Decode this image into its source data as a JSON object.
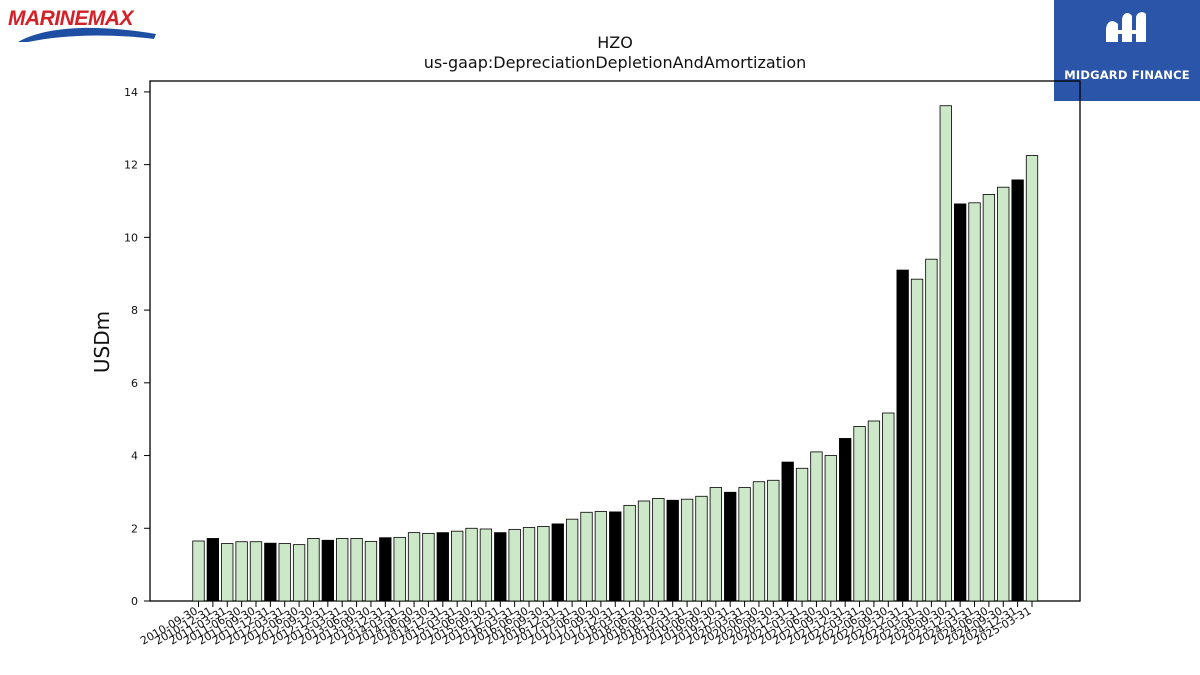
{
  "branding": {
    "left_logo_text": "MARINEMAX",
    "right_logo_text": "MIDGARD FINANCE"
  },
  "colors": {
    "bar_light": "#cde8c8",
    "bar_dark": "#000000",
    "axis": "#000000",
    "logo_blue": "#2b55a8",
    "logo_red": "#d42027"
  },
  "chart_data": {
    "type": "bar",
    "title": "HZO",
    "subtitle": "us-gaap:DepreciationDepletionAndAmortization",
    "xlabel": "",
    "ylabel": "USDm",
    "ylim": [
      0,
      14.3
    ],
    "yticks": [
      0,
      2,
      4,
      6,
      8,
      10,
      12,
      14
    ],
    "grid": false,
    "categories": [
      "2010-09-30",
      "2010-12-31",
      "2011-03-31",
      "2011-06-30",
      "2011-09-30",
      "2011-12-31",
      "2012-03-31",
      "2012-06-30",
      "2012-09-30",
      "2012-12-31",
      "2013-03-31",
      "2013-06-30",
      "2013-09-30",
      "2013-12-31",
      "2014-03-31",
      "2014-06-30",
      "2014-09-30",
      "2014-12-31",
      "2015-03-31",
      "2015-06-30",
      "2015-09-30",
      "2015-12-31",
      "2016-03-31",
      "2016-06-30",
      "2016-09-30",
      "2016-12-31",
      "2017-03-31",
      "2017-06-30",
      "2017-09-30",
      "2017-12-31",
      "2018-03-31",
      "2018-06-30",
      "2018-09-30",
      "2018-12-31",
      "2019-03-31",
      "2019-06-30",
      "2019-09-30",
      "2019-12-31",
      "2020-03-31",
      "2020-06-30",
      "2020-09-30",
      "2020-12-31",
      "2021-03-31",
      "2021-06-30",
      "2021-09-30",
      "2021-12-31",
      "2022-03-31",
      "2022-06-30",
      "2022-09-30",
      "2022-12-31",
      "2023-03-31",
      "2023-06-30",
      "2023-09-30",
      "2023-12-31",
      "2024-03-31",
      "2024-06-30",
      "2024-09-30",
      "2024-12-31",
      "2025-03-31"
    ],
    "values": [
      1.65,
      1.72,
      1.58,
      1.63,
      1.63,
      1.59,
      1.58,
      1.55,
      1.72,
      1.67,
      1.72,
      1.72,
      1.64,
      1.74,
      1.75,
      1.88,
      1.86,
      1.88,
      1.92,
      2.0,
      1.98,
      1.88,
      1.97,
      2.02,
      2.05,
      2.12,
      2.25,
      2.44,
      2.46,
      2.45,
      2.63,
      2.75,
      2.82,
      2.77,
      2.8,
      2.88,
      3.12,
      2.99,
      3.12,
      3.28,
      3.32,
      3.82,
      3.65,
      4.1,
      4.0,
      4.47,
      4.8,
      4.95,
      5.17,
      9.1,
      8.85,
      9.4,
      13.62,
      10.92,
      10.95,
      11.18,
      11.38,
      11.58,
      12.25
    ],
    "highlight_dark": [
      1,
      5,
      9,
      13,
      17,
      21,
      25,
      29,
      33,
      37,
      41,
      45,
      49,
      53,
      57
    ]
  }
}
